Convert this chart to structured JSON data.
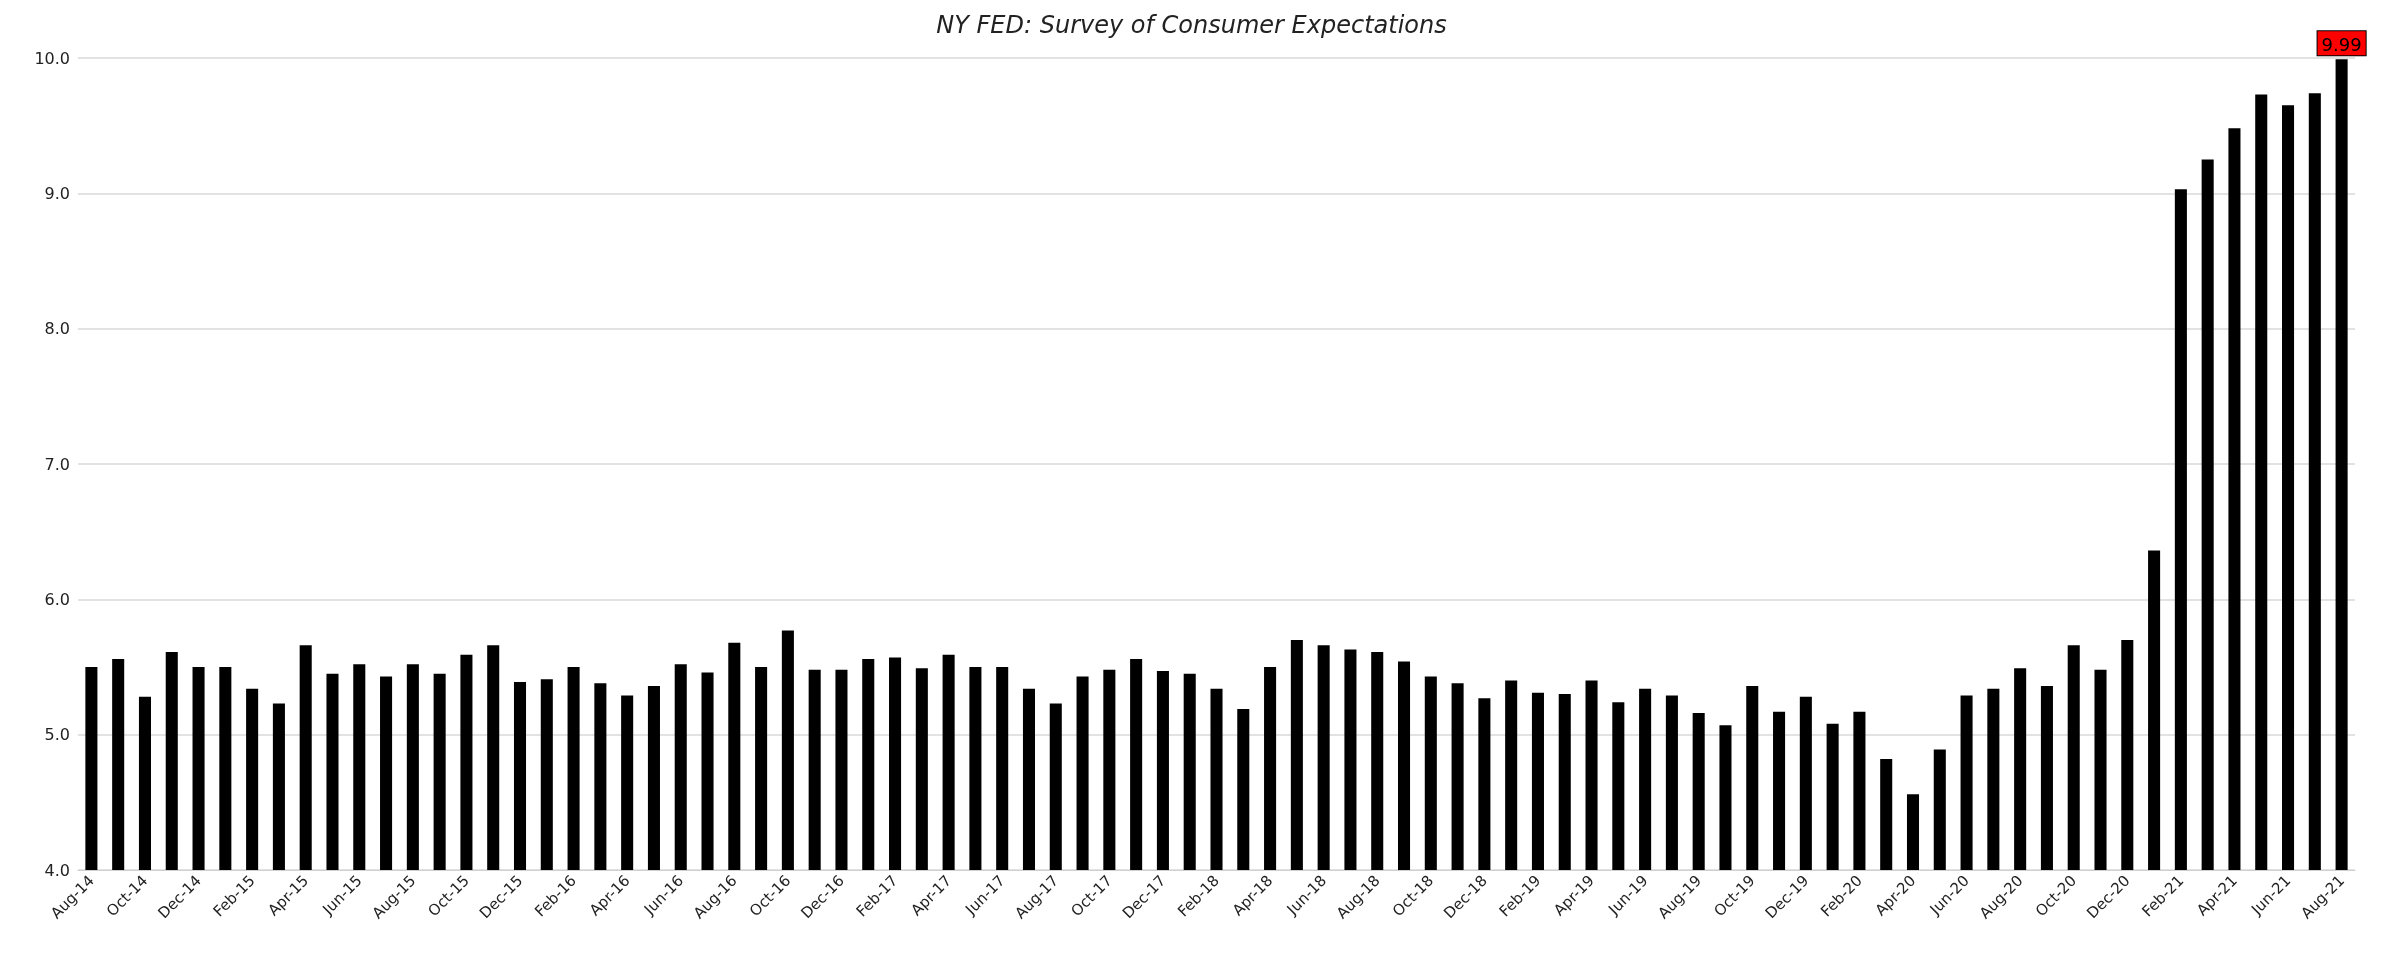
{
  "chart_data": {
    "type": "bar",
    "title": "NY FED: Survey of Consumer Expectations",
    "categories": [
      "Aug-14",
      null,
      "Oct-14",
      null,
      "Dec-14",
      null,
      "Feb-15",
      null,
      "Apr-15",
      null,
      "Jun-15",
      null,
      "Aug-15",
      null,
      "Oct-15",
      null,
      "Dec-15",
      null,
      "Feb-16",
      null,
      "Apr-16",
      null,
      "Jun-16",
      null,
      "Aug-16",
      null,
      "Oct-16",
      null,
      "Dec-16",
      null,
      "Feb-17",
      null,
      "Apr-17",
      null,
      "Jun-17",
      null,
      "Aug-17",
      null,
      "Oct-17",
      null,
      "Dec-17",
      null,
      "Feb-18",
      null,
      "Apr-18",
      null,
      "Jun-18",
      null,
      "Aug-18",
      null,
      "Oct-18",
      null,
      "Dec-18",
      null,
      "Feb-19",
      null,
      "Apr-19",
      null,
      "Jun-19",
      null,
      "Aug-19",
      null,
      "Oct-19",
      null,
      "Dec-19",
      null,
      "Feb-20",
      null,
      "Apr-20",
      null,
      "Jun-20",
      null,
      "Aug-20",
      null,
      "Oct-20",
      null,
      "Dec-20",
      null,
      "Feb-21",
      null,
      "Apr-21",
      null,
      "Jun-21",
      null,
      "Aug-21"
    ],
    "values": [
      5.5,
      5.56,
      5.28,
      5.61,
      5.5,
      5.5,
      5.34,
      5.23,
      5.66,
      5.45,
      5.52,
      5.43,
      5.52,
      5.45,
      5.59,
      5.66,
      5.39,
      5.41,
      5.5,
      5.38,
      5.29,
      5.36,
      5.52,
      5.46,
      5.68,
      5.5,
      5.77,
      5.48,
      5.48,
      5.56,
      5.57,
      5.49,
      5.59,
      5.5,
      5.5,
      5.34,
      5.23,
      5.43,
      5.48,
      5.56,
      5.47,
      5.45,
      5.34,
      5.19,
      5.5,
      5.7,
      5.66,
      5.63,
      5.61,
      5.54,
      5.43,
      5.38,
      5.27,
      5.4,
      5.31,
      5.3,
      5.4,
      5.24,
      5.34,
      5.29,
      5.16,
      5.07,
      5.36,
      5.17,
      5.28,
      5.08,
      5.17,
      4.82,
      4.56,
      4.89,
      5.29,
      5.34,
      5.49,
      5.36,
      5.66,
      5.48,
      5.7,
      6.36,
      9.03,
      9.25,
      9.48,
      9.73,
      9.65,
      9.74,
      9.99
    ],
    "value_labels": [
      null,
      null,
      null,
      null,
      null,
      null,
      null,
      null,
      null,
      null,
      null,
      null,
      null,
      null,
      null,
      null,
      null,
      null,
      null,
      null,
      null,
      null,
      null,
      null,
      null,
      null,
      null,
      null,
      null,
      null,
      null,
      null,
      null,
      null,
      null,
      null,
      null,
      null,
      null,
      null,
      null,
      null,
      null,
      null,
      null,
      null,
      null,
      null,
      null,
      null,
      null,
      null,
      null,
      null,
      null,
      null,
      null,
      null,
      null,
      null,
      null,
      null,
      null,
      null,
      null,
      null,
      null,
      null,
      null,
      null,
      null,
      null,
      null,
      null,
      null,
      null,
      null,
      null,
      null,
      null,
      null,
      null,
      null,
      null,
      "9.99"
    ],
    "color": "#000000",
    "ylim": [
      4,
      10
    ],
    "yticks": [
      {
        "value": 4,
        "label": "4.0"
      },
      {
        "value": 5,
        "label": "5.0"
      },
      {
        "value": 6,
        "label": "6.0"
      },
      {
        "value": 7,
        "label": "7.0"
      },
      {
        "value": 8,
        "label": "8.0"
      },
      {
        "value": 9,
        "label": "9.0"
      },
      {
        "value": 10,
        "label": "10.0"
      }
    ],
    "grid": "y"
  }
}
